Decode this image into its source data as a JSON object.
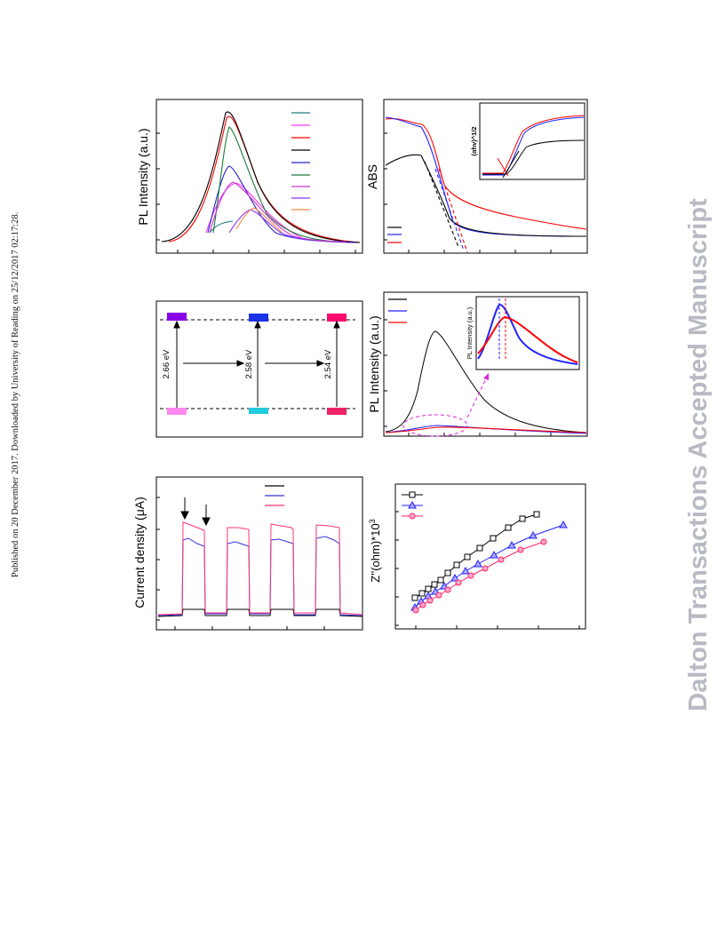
{
  "page": {
    "side_note": "Published on 20 December 2017. Downloaded by University of Reading on 25/12/2017 02:17:28.",
    "watermark": "Dalton Transactions Accepted Manuscript"
  },
  "chart_data": [
    {
      "panel": "top-left",
      "type": "line",
      "ylabel": "PL Intensity (a.u.)",
      "legend_placement": "top-right",
      "series_colors": [
        "#1d7a7a",
        "#ff33ff",
        "#ff0000",
        "#000000",
        "#2222cc",
        "#1d7a3c",
        "#cc33cc",
        "#8833ff",
        "#ff8844"
      ]
    },
    {
      "panel": "top-right",
      "type": "line",
      "ylabel": "ABS",
      "inset_ylabel": "(αhν)^1/2",
      "series_colors": [
        "#000000",
        "#2222ff",
        "#ff0000"
      ]
    },
    {
      "panel": "middle-left",
      "type": "diagram",
      "gaps": [
        "2.66 eV",
        "2.58 eV",
        "2.54 eV"
      ],
      "level_colors": {
        "top": [
          "#8a00e6",
          "#1a33e6",
          "#ff0a6e"
        ],
        "bottom": [
          "#ff88ee",
          "#22ccdd",
          "#ee2266"
        ]
      }
    },
    {
      "panel": "middle-right",
      "type": "line",
      "ylabel": "PL Intensity (a.u.)",
      "inset_ylabel": "PL Intensity (a.u.)",
      "series_colors": [
        "#000000",
        "#2222ff",
        "#ff0000"
      ]
    },
    {
      "panel": "bottom-left",
      "type": "line",
      "ylabel": "Current density (μA)",
      "series_colors": [
        "#000000",
        "#3333dd",
        "#ff3377"
      ]
    },
    {
      "panel": "bottom-right",
      "type": "scatter",
      "ylabel": "Z''(ohm)*10",
      "ylabel_sup": "3",
      "series_colors": [
        "#000000",
        "#2222ff",
        "#ff2266"
      ]
    }
  ]
}
